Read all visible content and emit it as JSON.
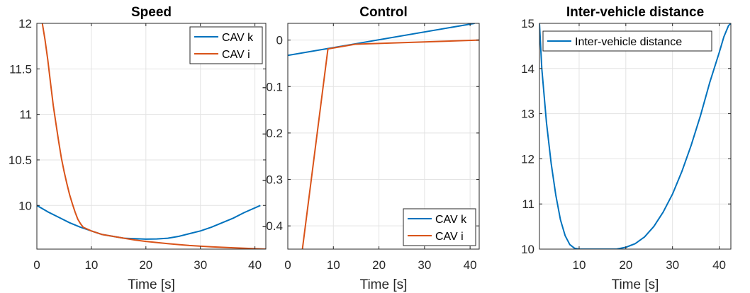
{
  "colors": {
    "blue": "#0072BD",
    "orange": "#D95319"
  },
  "chart_data": [
    {
      "type": "line",
      "title": "Speed",
      "xlabel": "Time [s]",
      "ylabel": "",
      "xlim": [
        0,
        42
      ],
      "ylim": [
        9.52,
        12
      ],
      "xticks": [
        0,
        10,
        20,
        30,
        40
      ],
      "yticks": [
        10,
        10.5,
        11,
        11.5,
        12
      ],
      "xtick_labels": [
        "0",
        "10",
        "20",
        "30",
        "40"
      ],
      "ytick_labels": [
        "10",
        "10.5",
        "11",
        "11.5",
        "12"
      ],
      "grid": true,
      "legend": "top-right",
      "series": [
        {
          "name": "CAV k",
          "color": "#0072BD",
          "x": [
            0,
            2,
            4,
            6,
            8,
            10,
            12,
            14,
            16,
            18,
            20,
            22,
            24,
            26,
            28,
            30,
            32,
            34,
            36,
            38,
            41
          ],
          "y": [
            10.0,
            9.93,
            9.87,
            9.81,
            9.76,
            9.72,
            9.68,
            9.66,
            9.64,
            9.635,
            9.63,
            9.632,
            9.64,
            9.66,
            9.69,
            9.72,
            9.76,
            9.81,
            9.86,
            9.92,
            10.0
          ]
        },
        {
          "name": "CAV i",
          "color": "#D95319",
          "x": [
            1,
            1.5,
            2,
            2.5,
            3,
            3.5,
            4,
            4.5,
            5,
            5.5,
            6,
            6.5,
            7,
            7.5,
            8,
            8.5,
            10,
            12,
            14,
            16,
            18,
            20,
            24,
            28,
            32,
            36,
            40,
            42
          ],
          "y": [
            12.0,
            11.82,
            11.6,
            11.35,
            11.1,
            10.9,
            10.7,
            10.52,
            10.37,
            10.24,
            10.12,
            10.02,
            9.93,
            9.85,
            9.8,
            9.76,
            9.72,
            9.68,
            9.66,
            9.64,
            9.62,
            9.605,
            9.58,
            9.56,
            9.545,
            9.535,
            9.525,
            9.52
          ]
        }
      ]
    },
    {
      "type": "line",
      "title": "Control",
      "xlabel": "Time [s]",
      "ylabel": "",
      "xlim": [
        0,
        42
      ],
      "ylim": [
        -0.45,
        0.036
      ],
      "xticks": [
        0,
        10,
        20,
        30,
        40
      ],
      "yticks": [
        0,
        -0.1,
        -0.2,
        -0.3,
        -0.4
      ],
      "xtick_labels": [
        "0",
        "10",
        "20",
        "30",
        "40"
      ],
      "ytick_labels": [
        "0",
        "-0.1",
        "-0.2",
        "-0.3",
        "-0.4"
      ],
      "grid": true,
      "legend": "bottom-right",
      "series": [
        {
          "name": "CAV k",
          "color": "#0072BD",
          "x": [
            0,
            41
          ],
          "y": [
            -0.033,
            0.036
          ]
        },
        {
          "name": "CAV i",
          "color": "#D95319",
          "x": [
            3.2,
            8.8,
            14.8,
            42
          ],
          "y": [
            -0.45,
            -0.019,
            -0.009,
            0.0
          ]
        }
      ]
    },
    {
      "type": "line",
      "title": "Inter-vehicle distance",
      "xlabel": "Time [s]",
      "ylabel": "",
      "xlim": [
        1.5,
        42.5
      ],
      "ylim": [
        10,
        15
      ],
      "xticks": [
        10,
        20,
        30,
        40
      ],
      "yticks": [
        10,
        11,
        12,
        13,
        14,
        15
      ],
      "xtick_labels": [
        "10",
        "20",
        "30",
        "40"
      ],
      "ytick_labels": [
        "10",
        "11",
        "12",
        "13",
        "14",
        "15"
      ],
      "grid": true,
      "legend": "top-left",
      "series": [
        {
          "name": "Inter-vehicle distance",
          "color": "#0072BD",
          "x": [
            1.5,
            2,
            3,
            4,
            5,
            6,
            7,
            8,
            9,
            10,
            12,
            14,
            16,
            18,
            20,
            22,
            24,
            26,
            28,
            30,
            32,
            34,
            36,
            38,
            40,
            41,
            42,
            42.5
          ],
          "y": [
            15.0,
            14.0,
            12.8,
            11.9,
            11.2,
            10.65,
            10.3,
            10.1,
            10.02,
            10.0,
            10.0,
            10.0,
            10.0,
            10.0,
            10.04,
            10.12,
            10.27,
            10.5,
            10.82,
            11.22,
            11.72,
            12.3,
            12.96,
            13.7,
            14.35,
            14.7,
            14.95,
            15.0
          ]
        }
      ]
    }
  ]
}
